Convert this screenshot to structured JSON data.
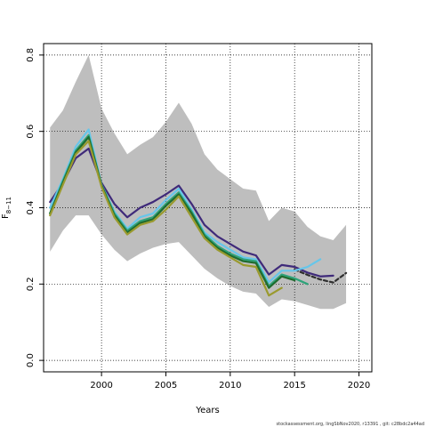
{
  "chart_data": {
    "type": "line",
    "xlabel": "Years",
    "ylabel": "F",
    "ylabel_sub": "8−11",
    "xlim": [
      1995.5,
      2021
    ],
    "ylim": [
      -0.03,
      0.83
    ],
    "x_ticks": [
      2000,
      2005,
      2010,
      2015,
      2020
    ],
    "y_ticks": [
      0.0,
      0.2,
      0.4,
      0.6,
      0.8
    ],
    "y_tick_labels": [
      "0.0",
      "0.2",
      "0.4",
      "0.6",
      "0.8"
    ],
    "grid": true,
    "grid_style": "dotted",
    "band": {
      "color": "#bebebe",
      "x": [
        1996,
        1997,
        1998,
        1999,
        2000,
        2001,
        2002,
        2003,
        2004,
        2005,
        2006,
        2007,
        2008,
        2009,
        2010,
        2011,
        2012,
        2013,
        2014,
        2015,
        2016,
        2017,
        2018,
        2019
      ],
      "upper": [
        0.61,
        0.655,
        0.73,
        0.8,
        0.66,
        0.595,
        0.54,
        0.565,
        0.585,
        0.625,
        0.675,
        0.62,
        0.54,
        0.5,
        0.475,
        0.45,
        0.445,
        0.365,
        0.4,
        0.39,
        0.35,
        0.325,
        0.315,
        0.355
      ],
      "lower": [
        0.285,
        0.34,
        0.38,
        0.38,
        0.33,
        0.29,
        0.26,
        0.28,
        0.295,
        0.305,
        0.31,
        0.275,
        0.24,
        0.215,
        0.195,
        0.18,
        0.175,
        0.14,
        0.16,
        0.155,
        0.145,
        0.135,
        0.135,
        0.15
      ]
    },
    "series": [
      {
        "color": "#2e2e2e",
        "dash": "4,3",
        "x": [
          2015,
          2016,
          2017,
          2018,
          2019
        ],
        "values": [
          0.238,
          0.224,
          0.212,
          0.204,
          0.229
        ]
      },
      {
        "color": "#3f2a7a",
        "x": [
          1996,
          1997,
          1998,
          1999,
          2000,
          2001,
          2002,
          2003,
          2004,
          2005,
          2006,
          2007,
          2008,
          2009,
          2010,
          2011,
          2012,
          2013,
          2014,
          2015,
          2016,
          2017,
          2018
        ],
        "values": [
          0.415,
          0.465,
          0.53,
          0.555,
          0.465,
          0.41,
          0.375,
          0.4,
          0.415,
          0.435,
          0.458,
          0.41,
          0.355,
          0.325,
          0.305,
          0.285,
          0.275,
          0.225,
          0.25,
          0.245,
          0.23,
          0.22,
          0.222
        ]
      },
      {
        "color": "#66c6ea",
        "x": [
          1996,
          1997,
          1998,
          1999,
          2000,
          2001,
          2002,
          2003,
          2004,
          2005,
          2006,
          2007,
          2008,
          2009,
          2010,
          2011,
          2012,
          2013,
          2014,
          2015,
          2016,
          2017
        ],
        "values": [
          0.4,
          0.475,
          0.56,
          0.605,
          0.46,
          0.39,
          0.345,
          0.375,
          0.385,
          0.42,
          0.45,
          0.395,
          0.335,
          0.31,
          0.29,
          0.27,
          0.265,
          0.205,
          0.235,
          0.235,
          0.245,
          0.265
        ]
      },
      {
        "color": "#2ea37a",
        "x": [
          1996,
          1997,
          1998,
          1999,
          2000,
          2001,
          2002,
          2003,
          2004,
          2005,
          2006,
          2007,
          2008,
          2009,
          2010,
          2011,
          2012,
          2013,
          2014,
          2015,
          2016
        ],
        "values": [
          0.385,
          0.47,
          0.55,
          0.59,
          0.46,
          0.385,
          0.34,
          0.365,
          0.375,
          0.41,
          0.44,
          0.39,
          0.33,
          0.3,
          0.28,
          0.265,
          0.26,
          0.195,
          0.225,
          0.215,
          0.2
        ]
      },
      {
        "color": "#1f6b2e",
        "x": [
          1996,
          1997,
          1998,
          1999,
          2000,
          2001,
          2002,
          2003,
          2004,
          2005,
          2006,
          2007,
          2008,
          2009,
          2010,
          2011,
          2012,
          2013,
          2014,
          2015
        ],
        "values": [
          0.385,
          0.465,
          0.545,
          0.585,
          0.458,
          0.38,
          0.335,
          0.36,
          0.37,
          0.405,
          0.435,
          0.385,
          0.325,
          0.295,
          0.275,
          0.26,
          0.255,
          0.19,
          0.22,
          0.21
        ]
      },
      {
        "color": "#9a9a2e",
        "x": [
          1996,
          1997,
          1998,
          1999,
          2000,
          2001,
          2002,
          2003,
          2004,
          2005,
          2006,
          2007,
          2008,
          2009,
          2010,
          2011,
          2012,
          2013,
          2014
        ],
        "values": [
          0.38,
          0.46,
          0.54,
          0.575,
          0.455,
          0.375,
          0.33,
          0.355,
          0.365,
          0.395,
          0.43,
          0.375,
          0.32,
          0.29,
          0.27,
          0.25,
          0.245,
          0.17,
          0.19
        ]
      }
    ]
  },
  "footer": "stockassessment.org, lingSbNov2020, r13391 , git: c28bdc2a44ad"
}
